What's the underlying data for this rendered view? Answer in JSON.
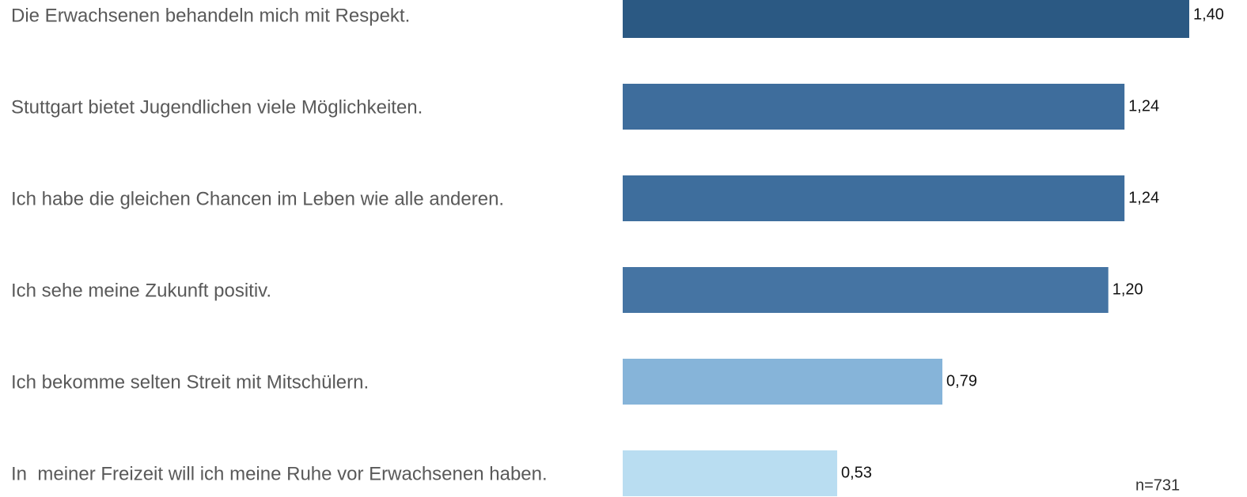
{
  "chart_data": {
    "type": "bar",
    "orientation": "horizontal",
    "categories": [
      "Die Erwachsenen behandeln mich mit Respekt.",
      "Stuttgart bietet Jugendlichen viele Möglichkeiten.",
      "Ich habe die gleichen Chancen im Leben wie alle anderen.",
      "Ich sehe meine Zukunft positiv.",
      "Ich bekomme selten Streit mit Mitschülern.",
      "In  meiner Freizeit will ich meine Ruhe vor Erwachsenen haben."
    ],
    "values": [
      1.4,
      1.24,
      1.24,
      1.2,
      0.79,
      0.53
    ],
    "value_labels": [
      "1,40",
      "1,24",
      "1,24",
      "1,20",
      "0,79",
      "0,53"
    ],
    "colors": [
      "#2b5983",
      "#3e6d9c",
      "#3e6e9d",
      "#4574a3",
      "#86b4d9",
      "#b9ddf1"
    ],
    "xlim": [
      0,
      1.4
    ],
    "annotation": "n=731"
  }
}
